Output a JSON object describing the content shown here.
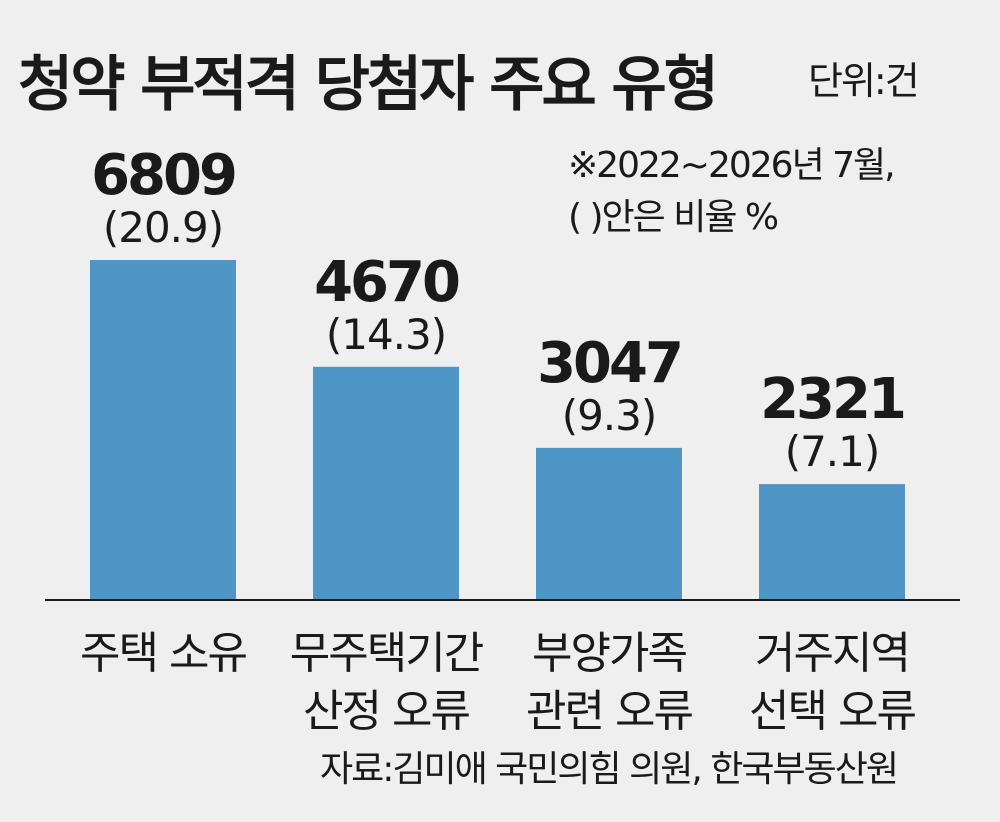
{
  "title": "청약 부적격 당첨자 주요 유형",
  "unit": "단위:건",
  "note_line1": "※2022~2026년 7월,",
  "note_line2": "(   )안은 비율   %",
  "source": "자료:김미애 국민의힘 의원, 한국부동산원",
  "colors": {
    "bar": "#4d96c6",
    "axis": "#1a1a1a",
    "background": "#efefef"
  },
  "chart_data": {
    "type": "bar",
    "title": "청약 부적격 당첨자 주요 유형",
    "xlabel": "",
    "ylabel": "",
    "categories": [
      [
        "주택 소유"
      ],
      [
        "무주택기간",
        "산정 오류"
      ],
      [
        "부양가족",
        "관련 오류"
      ],
      [
        "거주지역",
        "선택 오류"
      ]
    ],
    "values": [
      6809,
      4670,
      3047,
      2321
    ],
    "value_labels": [
      "6809",
      "4670",
      "3047",
      "2321"
    ],
    "percent_labels": [
      "(20.9)",
      "(14.3)",
      "(9.3)",
      "(7.1)"
    ],
    "ylim": [
      0,
      6809
    ],
    "grid": false
  }
}
